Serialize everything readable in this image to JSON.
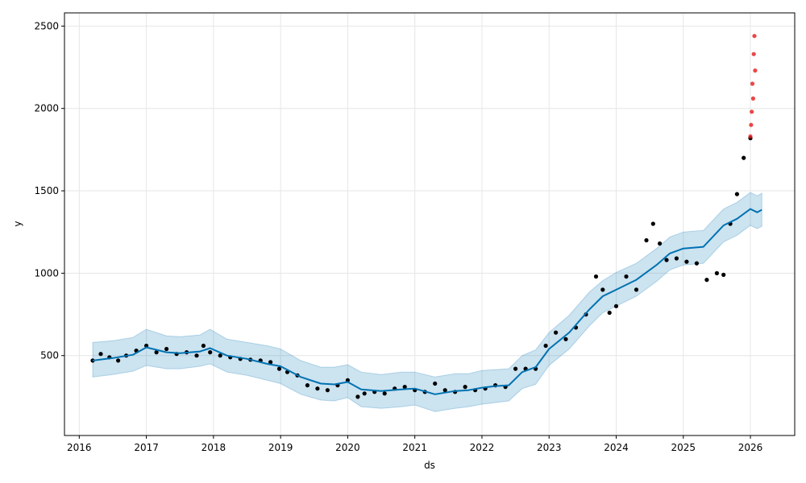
{
  "chart_data": {
    "type": "scatter",
    "xlabel": "ds",
    "ylabel": "y",
    "xlim": [
      2015.78,
      2026.66
    ],
    "ylim": [
      15,
      2580
    ],
    "grid": true,
    "x_ticks": [
      2016,
      2017,
      2018,
      2019,
      2020,
      2021,
      2022,
      2023,
      2024,
      2025,
      2026
    ],
    "x_tick_labels": [
      "2016",
      "2017",
      "2018",
      "2019",
      "2020",
      "2021",
      "2022",
      "2023",
      "2024",
      "2025",
      "2026"
    ],
    "y_ticks": [
      500,
      1000,
      1500,
      2000,
      2500
    ],
    "y_tick_labels": [
      "500",
      "1000",
      "1500",
      "2000",
      "2500"
    ],
    "colors": {
      "observed": "#000000",
      "outlier": "#e31a1c",
      "forecast": "#0072B2",
      "uncertainty": "#0072B2"
    },
    "forecast": {
      "x": [
        2016.2,
        2016.5,
        2016.8,
        2017.0,
        2017.3,
        2017.5,
        2017.8,
        2017.95,
        2018.2,
        2018.5,
        2018.8,
        2019.0,
        2019.3,
        2019.6,
        2019.8,
        2020.0,
        2020.2,
        2020.5,
        2020.8,
        2021.0,
        2021.3,
        2021.6,
        2021.8,
        2022.0,
        2022.2,
        2022.4,
        2022.6,
        2022.8,
        2023.0,
        2023.3,
        2023.6,
        2023.8,
        2024.0,
        2024.3,
        2024.6,
        2024.8,
        2025.0,
        2025.3,
        2025.6,
        2025.8,
        2026.0,
        2026.1,
        2026.17
      ],
      "yhat": [
        470,
        485,
        505,
        550,
        520,
        515,
        525,
        545,
        500,
        480,
        450,
        435,
        370,
        330,
        325,
        340,
        295,
        285,
        295,
        300,
        265,
        285,
        290,
        305,
        315,
        320,
        400,
        430,
        540,
        640,
        780,
        860,
        900,
        960,
        1050,
        1120,
        1150,
        1160,
        1290,
        1330,
        1390,
        1370,
        1385
      ],
      "lower": [
        370,
        385,
        405,
        440,
        420,
        420,
        435,
        450,
        400,
        380,
        350,
        330,
        265,
        230,
        225,
        245,
        190,
        180,
        190,
        200,
        160,
        180,
        190,
        205,
        215,
        225,
        300,
        325,
        440,
        540,
        680,
        760,
        800,
        860,
        950,
        1020,
        1050,
        1060,
        1190,
        1230,
        1290,
        1270,
        1285
      ],
      "upper": [
        580,
        590,
        610,
        660,
        620,
        615,
        625,
        660,
        600,
        580,
        560,
        540,
        470,
        430,
        430,
        445,
        400,
        385,
        400,
        400,
        370,
        390,
        390,
        410,
        415,
        420,
        500,
        535,
        640,
        745,
        885,
        955,
        1005,
        1060,
        1150,
        1220,
        1250,
        1260,
        1390,
        1430,
        1490,
        1470,
        1485
      ]
    },
    "observed": {
      "x": [
        2016.2,
        2016.32,
        2016.45,
        2016.58,
        2016.7,
        2016.85,
        2017.0,
        2017.15,
        2017.3,
        2017.45,
        2017.6,
        2017.75,
        2017.85,
        2017.95,
        2018.1,
        2018.25,
        2018.4,
        2018.55,
        2018.7,
        2018.85,
        2018.98,
        2019.1,
        2019.25,
        2019.4,
        2019.55,
        2019.7,
        2019.85,
        2020.0,
        2020.15,
        2020.25,
        2020.4,
        2020.55,
        2020.7,
        2020.85,
        2021.0,
        2021.15,
        2021.3,
        2021.45,
        2021.6,
        2021.75,
        2021.9,
        2022.05,
        2022.2,
        2022.35,
        2022.5,
        2022.65,
        2022.8,
        2022.95,
        2023.1,
        2023.25,
        2023.4,
        2023.55,
        2023.7,
        2023.8,
        2023.9,
        2024.0,
        2024.15,
        2024.3,
        2024.45,
        2024.55,
        2024.65,
        2024.75,
        2024.9,
        2025.05,
        2025.2,
        2025.35,
        2025.5,
        2025.6,
        2025.7,
        2025.8,
        2025.9,
        2026.0
      ],
      "y": [
        470,
        510,
        490,
        470,
        500,
        530,
        560,
        520,
        540,
        510,
        520,
        500,
        560,
        520,
        500,
        490,
        480,
        475,
        470,
        460,
        420,
        400,
        380,
        320,
        300,
        290,
        320,
        350,
        250,
        270,
        280,
        270,
        300,
        310,
        290,
        280,
        330,
        290,
        280,
        310,
        290,
        300,
        320,
        310,
        420,
        420,
        420,
        560,
        640,
        600,
        670,
        750,
        980,
        900,
        760,
        800,
        980,
        900,
        1200,
        1300,
        1180,
        1080,
        1090,
        1070,
        1060,
        960,
        1000,
        990,
        1300,
        1480,
        1700,
        1820
      ]
    },
    "outliers": {
      "x": [
        2026.0,
        2026.01,
        2026.02,
        2026.03,
        2026.04,
        2026.05,
        2026.06,
        2026.07
      ],
      "y": [
        1830,
        1900,
        1980,
        2150,
        2060,
        2330,
        2440,
        2230
      ]
    }
  }
}
